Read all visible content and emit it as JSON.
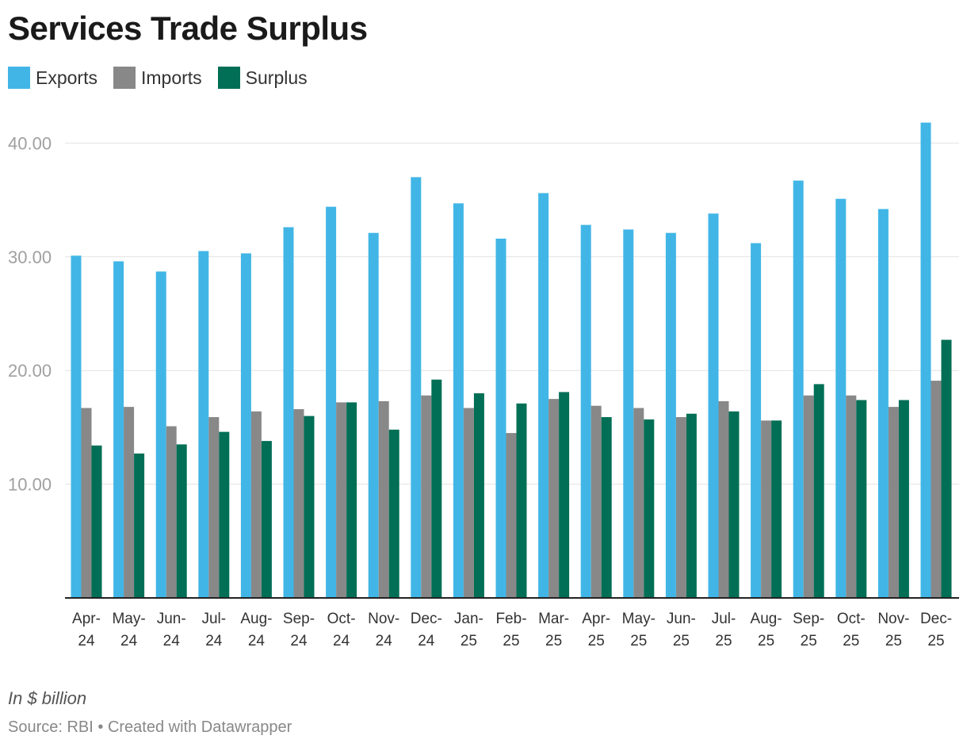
{
  "chart_data": {
    "type": "bar",
    "title": "Services Trade Surplus",
    "categories": [
      "Apr-24",
      "May-24",
      "Jun-24",
      "Jul-24",
      "Aug-24",
      "Sep-24",
      "Oct-24",
      "Nov-24",
      "Dec-24",
      "Jan-25",
      "Feb-25",
      "Mar-25",
      "Apr-25",
      "May-25",
      "Jun-25",
      "Jul-25",
      "Aug-25",
      "Sep-25",
      "Oct-25",
      "Nov-25",
      "Dec-25"
    ],
    "series": [
      {
        "name": "Exports",
        "color": "#41b6e6",
        "values": [
          30.1,
          29.6,
          28.7,
          30.5,
          30.3,
          32.6,
          34.4,
          32.1,
          37.0,
          34.7,
          31.6,
          35.6,
          32.8,
          32.4,
          32.1,
          33.8,
          31.2,
          36.7,
          35.1,
          34.2,
          41.8
        ]
      },
      {
        "name": "Imports",
        "color": "#888888",
        "values": [
          16.7,
          16.8,
          15.1,
          15.9,
          16.4,
          16.6,
          17.2,
          17.3,
          17.8,
          16.7,
          14.5,
          17.5,
          16.9,
          16.7,
          15.9,
          17.3,
          15.6,
          17.8,
          17.8,
          16.8,
          19.1
        ]
      },
      {
        "name": "Surplus",
        "color": "#006f55",
        "values": [
          13.4,
          12.7,
          13.5,
          14.6,
          13.8,
          16.0,
          17.2,
          14.8,
          19.2,
          18.0,
          17.1,
          18.1,
          15.9,
          15.7,
          16.2,
          16.4,
          15.6,
          18.8,
          17.4,
          17.4,
          22.7
        ]
      }
    ],
    "y_ticks": [
      "10.00",
      "20.00",
      "30.00",
      "40.00"
    ],
    "ylim": [
      0,
      42
    ],
    "grid": true,
    "legend_position": "top-left",
    "notes": "In $ billion",
    "source": "Source: RBI • Created with Datawrapper"
  }
}
